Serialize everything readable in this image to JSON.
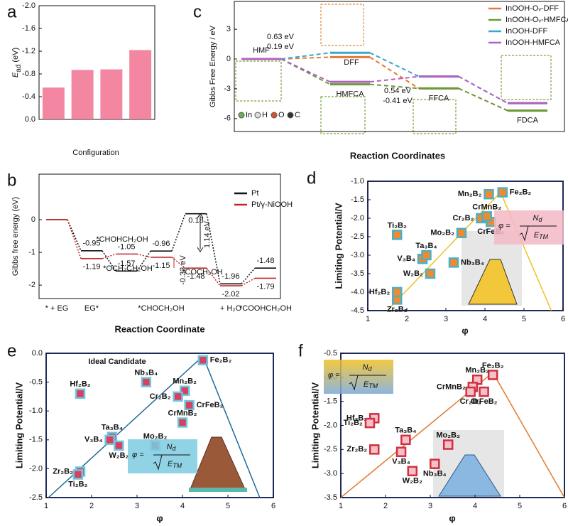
{
  "chart_data": [
    {
      "type": "bar",
      "panel": "a",
      "ylabel": {
        "main": "E",
        "sub": "ad",
        "unit": "(eV)"
      },
      "xlabel": "Configuration",
      "categories": [
        null,
        null,
        null,
        null
      ],
      "values": [
        -0.56,
        -0.87,
        -0.88,
        -1.22
      ],
      "color": "#f27a98",
      "ylim": [
        0,
        -2
      ],
      "yticks": [
        {
          "value": 0,
          "label": "0.0"
        },
        -0.4,
        -0.8,
        -1.2,
        -1.6,
        {
          "value": -2,
          "label": "-2.0"
        }
      ]
    },
    {
      "type": "energy",
      "panel": "c",
      "ylabel": "Gibbs Free Energy / eV",
      "xlabel": "Reaction Coordinates",
      "categories": [
        "HMF",
        "DFF",
        "HMFCA",
        "FFCA",
        "FDCA"
      ],
      "x": [
        1,
        2,
        2,
        3,
        4
      ],
      "series": [
        {
          "name": "InOOH-Oᵥ-DFF",
          "color": "#e8793a",
          "values": [
            0,
            0.19,
            null,
            -2.96,
            -5.2
          ]
        },
        {
          "name": "InOOH-Oᵥ-HMFCA",
          "color": "#6a9a3a",
          "values": [
            0,
            null,
            -2.55,
            -2.96,
            -5.2
          ]
        },
        {
          "name": "InOOH-DFF",
          "color": "#3aa6c8",
          "values": [
            0,
            0.63,
            null,
            -1.76,
            -4.45
          ]
        },
        {
          "name": "InOOH-HMFCA",
          "color": "#b060c0",
          "values": [
            0,
            null,
            -2.3,
            -1.76,
            -4.45
          ]
        }
      ],
      "annotations": [
        {
          "text": "0.63 eV",
          "color": "#3aa6c8"
        },
        {
          "text": "0.19 eV",
          "color": "#e8793a"
        },
        {
          "text": "0.54 eV",
          "color": "#b060c0"
        },
        {
          "text": "-0.41 eV",
          "color": "#6a9a3a"
        }
      ],
      "elements": [
        "In",
        "H",
        "O",
        "C"
      ],
      "ylim": [
        -7.3,
        5.8
      ],
      "yticks": [
        3,
        0,
        -3,
        -6
      ]
    },
    {
      "type": "energy",
      "panel": "b",
      "ylabel": "Gibbs free energy (eV)",
      "xlabel": "Reaction Coordinate",
      "categories": [
        "* + EG",
        "EG*",
        null,
        "*CHOCH₂OH",
        null,
        "+ H₂O",
        "*COOHCH₂OH"
      ],
      "series": [
        {
          "name": "Pt",
          "color": "#111111",
          "values": [
            0,
            -0.95,
            -1.57,
            -0.96,
            0.18,
            -1.96,
            -1.48
          ]
        },
        {
          "name": "Pt/γ-NiOOH",
          "color": "#c0282a",
          "values": [
            0,
            -1.19,
            -1.05,
            -1.15,
            -1.48,
            -2.02,
            -1.79
          ]
        }
      ],
      "annotations": [
        {
          "text": "*CHOHCH₂OH",
          "color": "#c0282a"
        },
        {
          "text": "*OCH₂CH₂OH",
          "color": "#111111"
        },
        {
          "text": "1.14 eV",
          "color": "#111111"
        },
        {
          "text": "-0.33 eV",
          "color": "#c0282a"
        },
        {
          "text": "*COCH₂OH",
          "color": "#111111"
        }
      ],
      "ylim": [
        -2.41,
        1.39
      ],
      "yticks": [
        0,
        -1,
        -2
      ]
    },
    {
      "type": "scatter",
      "panel": "d",
      "xlabel": "φ",
      "ylabel": "Limiting Potential/V",
      "labels": [
        "Ti₂B₂",
        "Zr₂B₂",
        "Hf₂B₂",
        "V₃B₄",
        "Ta₃B₄",
        "W₂B₂",
        "Nb₃B₄",
        "Mo₂B₂",
        "Cr₂B₂",
        "CrFeB₂",
        "CrMnB₂",
        "Mn₂B₂",
        "Fe₂B₂"
      ],
      "x": [
        1.75,
        1.75,
        1.75,
        2.4,
        2.5,
        2.6,
        3.2,
        3.4,
        3.9,
        4.15,
        4.05,
        4.1,
        4.45
      ],
      "y": [
        -2.45,
        -4.2,
        -4.0,
        -3.1,
        -3.0,
        -3.5,
        -3.2,
        -2.4,
        -2.0,
        -2.1,
        -1.95,
        -1.35,
        -1.3
      ],
      "marker_color": "#f08a2a",
      "edge_color": "#4ab0c8",
      "line": {
        "color": "#f0c020",
        "x": [
          1.5,
          4.4,
          5.7
        ],
        "y": [
          -4.5,
          -1.3,
          -4.5
        ]
      },
      "formula": {
        "lhs": "φ =",
        "num": "N",
        "num_sub": "d",
        "den": "E",
        "den_sub": "TM"
      },
      "xlim": [
        1,
        6
      ],
      "xticks": [
        1,
        2,
        3,
        4,
        5,
        6
      ],
      "ylim": [
        -4.5,
        -1
      ],
      "yticks": [
        {
          "value": -1,
          "label": "-1.0"
        },
        -1.5,
        {
          "value": -2,
          "label": "-2.0"
        },
        -2.5,
        {
          "value": -3,
          "label": "-3.0"
        },
        -3.5,
        {
          "value": -4,
          "label": "-4.0"
        },
        -4.5
      ]
    },
    {
      "type": "scatter",
      "panel": "e",
      "xlabel": "φ",
      "ylabel": "Limiting Potential/V",
      "labels": [
        "Fe₂B₂",
        "Hf₂B₂",
        "Nb₃B₄",
        "Mn₂B₂",
        "Cr₂B₂",
        "CrFeB₂",
        "CrMnB₂",
        "Ta₃B₄",
        "V₃B₄",
        "W₂B₂",
        "Mo₂B₂",
        "Zr₂B₂",
        "Ti₂B₂"
      ],
      "x": [
        4.45,
        1.75,
        3.2,
        4.05,
        3.9,
        4.15,
        4.0,
        2.45,
        2.4,
        2.6,
        3.4,
        1.75,
        1.7
      ],
      "y": [
        -0.12,
        -0.7,
        -0.5,
        -0.65,
        -0.75,
        -0.9,
        -1.2,
        -1.45,
        -1.5,
        -1.6,
        -1.6,
        -2.05,
        -2.1
      ],
      "marker_color": "#d84060",
      "edge_color": "#6cc8e0",
      "line": {
        "color": "#1f6a9a",
        "x": [
          1.05,
          4.45,
          5.7
        ],
        "y": [
          -2.5,
          -0.05,
          -2.5
        ]
      },
      "annotations": [
        {
          "text": "Ideal Candidate",
          "color": "#d02030"
        }
      ],
      "formula": {
        "lhs": "φ =",
        "num": "N",
        "num_sub": "d",
        "den": "E",
        "den_sub": "TM"
      },
      "xlim": [
        1,
        6
      ],
      "xticks": [
        1,
        2,
        3,
        4,
        5,
        6
      ],
      "ylim": [
        -2.5,
        0
      ],
      "yticks": [
        {
          "value": 0,
          "label": "0.0"
        },
        -0.5,
        {
          "value": -1,
          "label": "-1.0"
        },
        -1.5,
        {
          "value": -2,
          "label": "-2.0"
        },
        -2.5
      ]
    },
    {
      "type": "scatter",
      "panel": "f",
      "xlabel": "φ",
      "ylabel": "Limiting Potential/V",
      "labels": [
        "Fe₂B₂",
        "Mn₂B₂",
        "CrMnB₂",
        "Cr₂B₂",
        "CrFeB₂",
        "Hf₂B₂",
        "Ti₂B₂",
        "Ta₃B₄",
        "Mo₂B₂",
        "Zr₂B₂",
        "V₃B₄",
        "Nb₃B₄",
        "W₂B₂"
      ],
      "x": [
        4.4,
        4.05,
        3.95,
        3.9,
        4.2,
        1.75,
        1.65,
        2.45,
        3.4,
        1.75,
        2.35,
        3.1,
        2.6
      ],
      "y": [
        -0.95,
        -1.05,
        -1.2,
        -1.3,
        -1.3,
        -1.85,
        -1.95,
        -2.3,
        -2.4,
        -2.5,
        -2.55,
        -2.8,
        -2.95
      ],
      "marker_color": "#f6c0c8",
      "edge_color": "#d03040",
      "line": {
        "color": "#e07a30",
        "x": [
          1.0,
          4.4,
          6.0
        ],
        "y": [
          -3.5,
          -0.9,
          -3.5
        ]
      },
      "formula": {
        "lhs": "φ =",
        "num": "N",
        "num_sub": "d",
        "den": "E",
        "den_sub": "TM"
      },
      "xlim": [
        1,
        6
      ],
      "xticks": [
        1,
        2,
        3,
        4,
        5,
        6
      ],
      "ylim": [
        -3.5,
        -0.5
      ],
      "yticks": [
        -0.5,
        {
          "value": -1,
          "label": "-1.0"
        },
        -1.5,
        {
          "value": -2,
          "label": "-2.0"
        },
        -2.5,
        {
          "value": -3,
          "label": "-3.0"
        },
        -3.5
      ]
    }
  ]
}
